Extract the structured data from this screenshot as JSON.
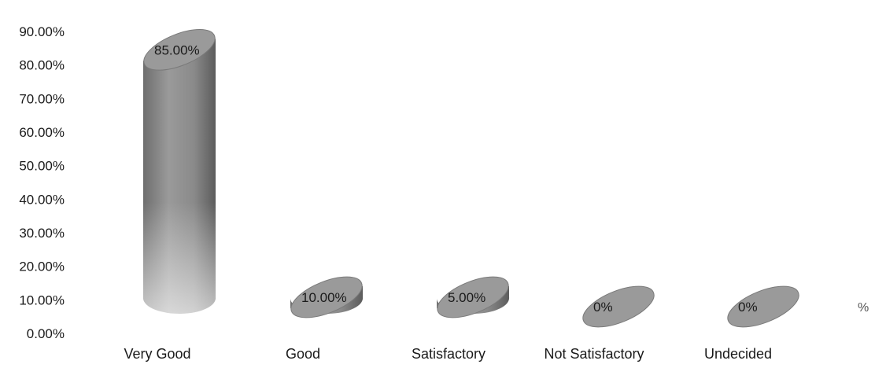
{
  "chart_data": {
    "type": "bar",
    "style": "3d-cylinder",
    "categories": [
      "Very Good",
      "Good",
      "Satisfactory",
      "Not Satisfactory",
      "Undecided"
    ],
    "series": [
      {
        "name": "%",
        "values": [
          85,
          10,
          5,
          0,
          0
        ],
        "data_labels": [
          "85.00%",
          "10.00%",
          "5.00%",
          "0%",
          "0%"
        ]
      }
    ],
    "title": "",
    "xlabel": "",
    "ylabel": "",
    "ylim": [
      0,
      90
    ],
    "yticks": [
      0,
      10,
      20,
      30,
      40,
      50,
      60,
      70,
      80,
      90
    ],
    "ytick_labels": [
      "0.00%",
      "10.00%",
      "20.00%",
      "30.00%",
      "40.00%",
      "50.00%",
      "60.00%",
      "70.00%",
      "80.00%",
      "90.00%"
    ],
    "grid": false,
    "legend": {
      "position": "right",
      "entries": [
        "%"
      ]
    },
    "colors": {
      "bar": "#8c8c8c",
      "bar_dark": "#5a5a5a",
      "bar_top": "#9a9a9a"
    }
  }
}
